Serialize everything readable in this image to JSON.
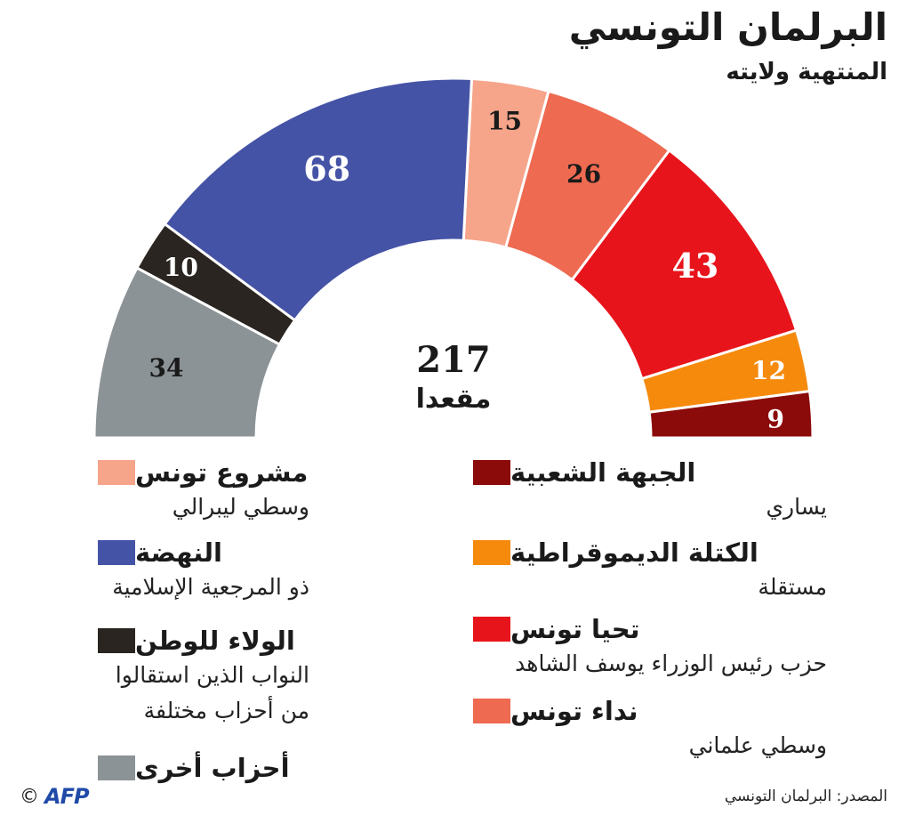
{
  "title": "البرلمان التونسي",
  "subtitle": "المنتهية ولايته",
  "chart_data": {
    "type": "pie",
    "subtype": "half-donut (parliament)",
    "total_value": "217",
    "total_label": "مقعدا",
    "slices_order": "right-to-left",
    "slices": [
      {
        "key": "popular_front",
        "value": 9,
        "color": "#8B0A0A",
        "label_color": "#ffffff"
      },
      {
        "key": "democratic_bloc",
        "value": 12,
        "color": "#F58A0C",
        "label_color": "#ffffff"
      },
      {
        "key": "tahya_tounes",
        "value": 43,
        "color": "#E8141B",
        "label_color": "#ffffff"
      },
      {
        "key": "nidaa_tounes",
        "value": 26,
        "color": "#EE6A50",
        "label_color": "#1a1a1a"
      },
      {
        "key": "machrouu_tounes",
        "value": 15,
        "color": "#F6A58A",
        "label_color": "#1a1a1a"
      },
      {
        "key": "ennahda",
        "value": 68,
        "color": "#4553A6",
        "label_color": "#ffffff"
      },
      {
        "key": "loyalty_homeland",
        "value": 10,
        "color": "#2A2520",
        "label_color": "#ffffff"
      },
      {
        "key": "other_parties",
        "value": 34,
        "color": "#8C9396",
        "label_color": "#1a1a1a"
      }
    ]
  },
  "legend": {
    "popular_front": {
      "name": "الجبهة الشعبية",
      "desc": "يساري"
    },
    "democratic_bloc": {
      "name": "الكتلة الديموقراطية",
      "desc": "مستقلة"
    },
    "tahya_tounes": {
      "name": "تحيا تونس",
      "desc": "حزب رئيس الوزراء يوسف الشاهد"
    },
    "nidaa_tounes": {
      "name": "نداء تونس",
      "desc": "وسطي علماني"
    },
    "machrouu_tounes": {
      "name": "مشروع تونس",
      "desc": "وسطي ليبرالي"
    },
    "ennahda": {
      "name": "النهضة",
      "desc": "ذو المرجعية الإسلامية"
    },
    "loyalty_homeland": {
      "name": "الولاء للوطن",
      "desc": "النواب الذين استقالوا\nمن أحزاب مختلفة"
    },
    "other_parties": {
      "name": "أحزاب أخرى",
      "desc": ""
    }
  },
  "source": "المصدر: البرلمان التونسي",
  "credit": {
    "copyright": "©",
    "agency": "AFP"
  }
}
